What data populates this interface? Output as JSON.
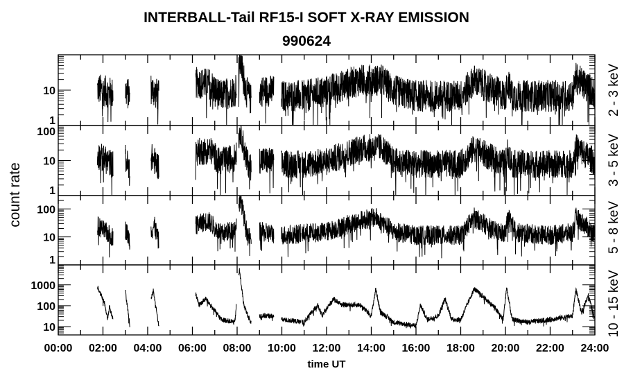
{
  "chart_data": {
    "type": "line",
    "title": "INTERBALL-Tail RF15-I SOFT X-RAY EMISSION",
    "subtitle": "990624",
    "xlabel": "time UT",
    "ylabel": "count rate",
    "xlim_hours": [
      0,
      24
    ],
    "x_tick_labels": [
      "00:00",
      "02:00",
      "04:00",
      "06:00",
      "08:00",
      "10:00",
      "12:00",
      "14:00",
      "16:00",
      "18:00",
      "20:00",
      "22:00",
      "24:00"
    ],
    "y_scale": "log",
    "data_coverage_hours": [
      [
        1.75,
        2.45
      ],
      [
        3.0,
        3.2
      ],
      [
        4.15,
        4.5
      ],
      [
        6.15,
        7.97
      ],
      [
        8.07,
        8.63
      ],
      [
        9.0,
        9.64
      ],
      [
        9.98,
        10.85
      ],
      [
        10.9,
        24.0
      ]
    ],
    "panels": [
      {
        "name": "2 - 3 keV",
        "ylim": [
          1,
          100
        ],
        "y_tick_labels": [
          "1",
          "10"
        ],
        "y_tick_values": [
          1,
          10
        ],
        "noise_decades": 0.45,
        "profile_hours": [
          1.75,
          2.4,
          3.0,
          3.2,
          4.15,
          4.5,
          6.1,
          6.8,
          7.2,
          7.9,
          8.15,
          8.4,
          8.6,
          9.0,
          9.6,
          10,
          11,
          12,
          13.5,
          14.5,
          15,
          16,
          18,
          18.6,
          19.5,
          20.0,
          20.1,
          20.3,
          22,
          23,
          23.15,
          24
        ],
        "profile_counts": [
          8,
          6,
          7,
          5,
          8,
          5,
          12,
          11,
          5,
          7,
          50,
          7,
          4,
          7,
          7,
          5,
          5,
          7,
          14,
          14,
          7,
          5,
          5,
          14,
          7,
          5,
          13,
          5,
          5,
          5,
          16,
          6
        ]
      },
      {
        "name": "3 - 5 keV",
        "ylim": [
          1,
          100
        ],
        "y_tick_labels": [
          "1",
          "10",
          "100"
        ],
        "y_tick_values": [
          1,
          10,
          100
        ],
        "noise_decades": 0.4,
        "profile_hours": [
          1.75,
          2.4,
          3.0,
          3.2,
          4.15,
          4.5,
          6.1,
          6.8,
          7.2,
          7.9,
          8.15,
          8.4,
          8.6,
          9.0,
          9.6,
          10,
          11,
          12,
          13.5,
          14.5,
          15,
          16,
          18,
          18.6,
          19.5,
          20.0,
          20.1,
          20.3,
          22,
          23,
          23.15,
          24
        ],
        "profile_counts": [
          11,
          6,
          9,
          4,
          10,
          5,
          13,
          15,
          7,
          9,
          60,
          8,
          5,
          8,
          7,
          6,
          6,
          7,
          17,
          18,
          7,
          6,
          6,
          17,
          8,
          6,
          14,
          6,
          6,
          6,
          18,
          7
        ]
      },
      {
        "name": "5 - 8 keV",
        "ylim": [
          1,
          300
        ],
        "y_tick_labels": [
          "1",
          "10",
          "100"
        ],
        "y_tick_values": [
          1,
          10,
          100
        ],
        "noise_decades": 0.35,
        "profile_hours": [
          1.75,
          2.4,
          3.0,
          3.2,
          4.15,
          4.3,
          4.5,
          6.1,
          6.7,
          7.3,
          7.9,
          8.15,
          8.4,
          8.6,
          9.0,
          10,
          12,
          13.5,
          14.2,
          15,
          16,
          18,
          18.6,
          19.5,
          20.0,
          20.1,
          20.5,
          22,
          23,
          23.15,
          24
        ],
        "profile_counts": [
          20,
          8,
          15,
          6,
          12,
          20,
          5,
          20,
          30,
          10,
          15,
          200,
          15,
          6,
          12,
          9,
          12,
          30,
          40,
          12,
          9,
          9,
          40,
          13,
          10,
          40,
          11,
          9,
          11,
          40,
          10
        ]
      },
      {
        "name": "10 - 15 keV",
        "ylim": [
          4,
          9000
        ],
        "y_tick_labels": [
          "10",
          "100",
          "1000"
        ],
        "y_tick_values": [
          10,
          100,
          1000
        ],
        "noise_decades": 0.12,
        "profile_hours": [
          1.75,
          2.1,
          2.2,
          2.3,
          2.45,
          3.0,
          3.2,
          4.15,
          4.25,
          4.5,
          6.1,
          6.3,
          6.6,
          6.8,
          7.3,
          7.9,
          8.1,
          8.3,
          8.6,
          9.0,
          9.6,
          10,
          11,
          11.6,
          11.8,
          12.3,
          12.7,
          13.5,
          14,
          14.2,
          14.4,
          15,
          16,
          16.2,
          16.5,
          17,
          17.3,
          17.6,
          18,
          18.6,
          19.5,
          19.9,
          20.05,
          20.3,
          21,
          22,
          23,
          23.15,
          23.4,
          23.7,
          24
        ],
        "profile_counts": [
          800,
          100,
          20,
          100,
          20,
          500,
          10,
          200,
          500,
          10,
          500,
          100,
          200,
          100,
          20,
          15,
          5000,
          100,
          15,
          30,
          30,
          20,
          15,
          100,
          30,
          200,
          100,
          100,
          30,
          600,
          50,
          15,
          10,
          100,
          20,
          30,
          200,
          20,
          20,
          600,
          80,
          20,
          700,
          20,
          15,
          20,
          30,
          600,
          40,
          300,
          20
        ]
      }
    ]
  }
}
